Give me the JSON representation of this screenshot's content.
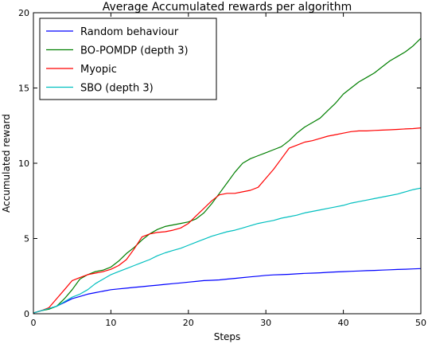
{
  "chart_data": {
    "type": "line",
    "title": "Average Accumulated rewards per algorithm",
    "xlabel": "Steps",
    "ylabel": "Accumulated reward",
    "xlim": [
      0,
      50
    ],
    "ylim": [
      0,
      20
    ],
    "xticks": [
      0,
      10,
      20,
      30,
      40,
      50
    ],
    "yticks": [
      0,
      5,
      10,
      15,
      20
    ],
    "x_tick_labels": [
      "0",
      "10",
      "20",
      "30",
      "40",
      "50"
    ],
    "y_tick_labels": [
      "0",
      "5",
      "10",
      "15",
      "20"
    ],
    "grid": false,
    "legend_position": "top-left",
    "x": [
      0,
      1,
      2,
      3,
      4,
      5,
      6,
      7,
      8,
      9,
      10,
      11,
      12,
      13,
      14,
      15,
      16,
      17,
      18,
      19,
      20,
      21,
      22,
      23,
      24,
      25,
      26,
      27,
      28,
      29,
      30,
      31,
      32,
      33,
      34,
      35,
      36,
      37,
      38,
      39,
      40,
      41,
      42,
      43,
      44,
      45,
      46,
      47,
      48,
      49,
      50
    ],
    "series": [
      {
        "name": "Random behaviour",
        "color": "#0000ff",
        "values": [
          0.05,
          0.2,
          0.35,
          0.5,
          0.75,
          1.0,
          1.15,
          1.3,
          1.4,
          1.5,
          1.6,
          1.65,
          1.7,
          1.75,
          1.8,
          1.85,
          1.9,
          1.95,
          2.0,
          2.05,
          2.1,
          2.15,
          2.2,
          2.22,
          2.25,
          2.3,
          2.35,
          2.4,
          2.45,
          2.5,
          2.55,
          2.58,
          2.6,
          2.62,
          2.65,
          2.68,
          2.7,
          2.72,
          2.75,
          2.78,
          2.8,
          2.82,
          2.84,
          2.86,
          2.88,
          2.9,
          2.92,
          2.94,
          2.96,
          2.98,
          3.0
        ]
      },
      {
        "name": "BO-POMDP (depth 3)",
        "color": "#007f00",
        "values": [
          0.05,
          0.2,
          0.3,
          0.5,
          1.0,
          1.6,
          2.3,
          2.6,
          2.8,
          2.9,
          3.1,
          3.5,
          4.0,
          4.4,
          4.9,
          5.3,
          5.6,
          5.8,
          5.9,
          6.0,
          6.1,
          6.3,
          6.7,
          7.3,
          8.0,
          8.7,
          9.4,
          10.0,
          10.3,
          10.5,
          10.7,
          10.9,
          11.1,
          11.5,
          12.0,
          12.4,
          12.7,
          13.0,
          13.5,
          14.0,
          14.6,
          15.0,
          15.4,
          15.7,
          16.0,
          16.4,
          16.8,
          17.1,
          17.4,
          17.8,
          18.3
        ]
      },
      {
        "name": "Myopic",
        "color": "#ff0000",
        "values": [
          0.05,
          0.2,
          0.4,
          1.0,
          1.6,
          2.2,
          2.4,
          2.6,
          2.7,
          2.8,
          2.95,
          3.2,
          3.6,
          4.3,
          5.1,
          5.3,
          5.4,
          5.45,
          5.55,
          5.7,
          6.0,
          6.5,
          7.0,
          7.5,
          7.9,
          8.0,
          8.0,
          8.1,
          8.2,
          8.4,
          9.0,
          9.6,
          10.3,
          11.0,
          11.2,
          11.4,
          11.5,
          11.65,
          11.8,
          11.9,
          12.0,
          12.1,
          12.15,
          12.15,
          12.18,
          12.2,
          12.22,
          12.25,
          12.28,
          12.3,
          12.35
        ]
      },
      {
        "name": "SBO (depth 3)",
        "color": "#00bfbf",
        "values": [
          0.05,
          0.2,
          0.35,
          0.5,
          0.8,
          1.1,
          1.3,
          1.6,
          2.0,
          2.3,
          2.6,
          2.8,
          3.0,
          3.2,
          3.4,
          3.6,
          3.85,
          4.05,
          4.2,
          4.35,
          4.55,
          4.75,
          4.95,
          5.15,
          5.3,
          5.45,
          5.55,
          5.7,
          5.85,
          6.0,
          6.1,
          6.2,
          6.35,
          6.45,
          6.55,
          6.7,
          6.8,
          6.9,
          7.0,
          7.1,
          7.2,
          7.35,
          7.45,
          7.55,
          7.65,
          7.75,
          7.85,
          7.95,
          8.1,
          8.25,
          8.35
        ]
      }
    ]
  }
}
